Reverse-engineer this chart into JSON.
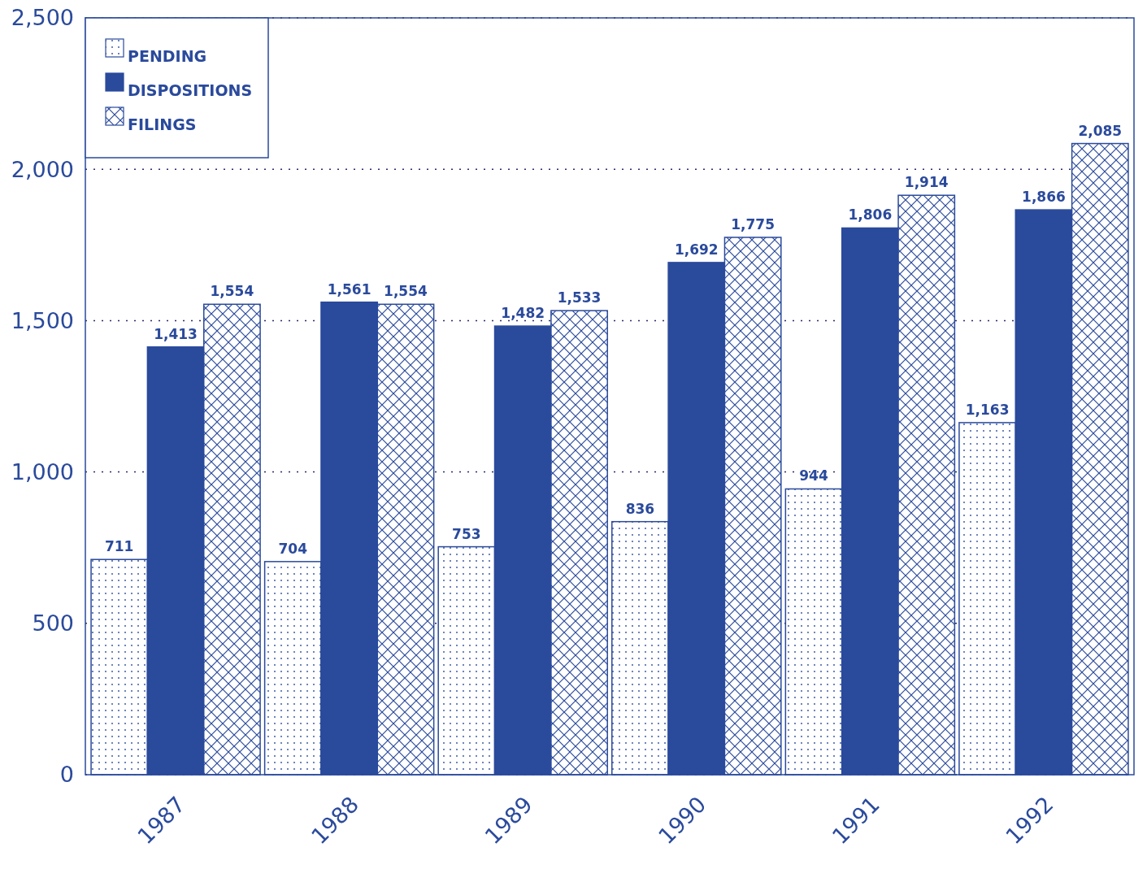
{
  "chart_data": {
    "type": "bar",
    "categories": [
      "1987",
      "1988",
      "1989",
      "1990",
      "1991",
      "1992"
    ],
    "series": [
      {
        "name": "PENDING",
        "color": "#2a4a9c",
        "values": [
          711,
          704,
          753,
          836,
          944,
          1163
        ],
        "value_labels": [
          "711",
          "704",
          "753",
          "836",
          "944",
          "1,163"
        ]
      },
      {
        "name": "DISPOSITIONS",
        "color": "#2a4a9c",
        "values": [
          1413,
          1561,
          1482,
          1692,
          1806,
          1866
        ],
        "value_labels": [
          "1,413",
          "1,561",
          "1,482",
          "1,692",
          "1,806",
          "1,866"
        ]
      },
      {
        "name": "FILINGS",
        "color": "#2a4a9c",
        "values": [
          1554,
          1554,
          1533,
          1775,
          1914,
          2085
        ],
        "value_labels": [
          "1,554",
          "1,554",
          "1,533",
          "1,775",
          "1,914",
          "2,085"
        ]
      }
    ],
    "ylim": [
      0,
      2500
    ],
    "yticks": [
      {
        "value": 0,
        "label": "0"
      },
      {
        "value": 500,
        "label": "500"
      },
      {
        "value": 1000,
        "label": "1,000"
      },
      {
        "value": 1500,
        "label": "1,500"
      },
      {
        "value": 2000,
        "label": "2,000"
      },
      {
        "value": 2500,
        "label": "2,500"
      }
    ],
    "grid": "y",
    "line_style": "dotted",
    "legend": "top left"
  }
}
